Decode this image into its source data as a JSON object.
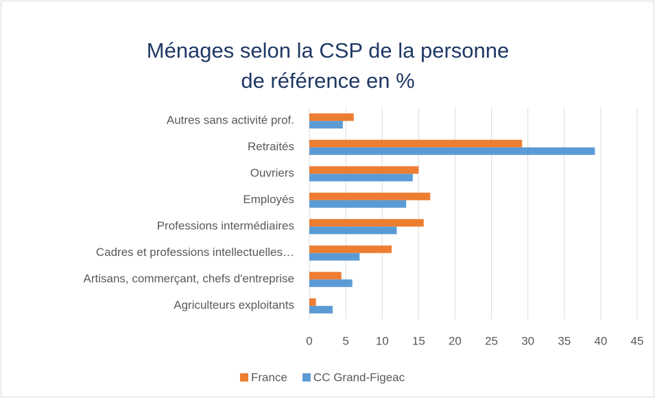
{
  "chart_data": {
    "type": "bar",
    "orientation": "horizontal",
    "title": [
      "Ménages selon la CSP de la personne",
      "de référence en %"
    ],
    "categories": [
      "Autres sans activité prof.",
      "Retraités",
      "Ouvriers",
      "Employés",
      "Professions intermédiaires",
      "Cadres et professions intellectuelles…",
      "Artisans, commerçant, chefs d'entreprise",
      "Agriculteurs exploitants"
    ],
    "series": [
      {
        "name": "France",
        "color": "#ed7d31",
        "values": [
          6.1,
          29.2,
          15.0,
          16.6,
          15.7,
          11.3,
          4.4,
          0.9
        ]
      },
      {
        "name": "CC Grand-Figeac",
        "color": "#5b9bd5",
        "values": [
          4.6,
          39.2,
          14.2,
          13.3,
          12.0,
          6.9,
          5.9,
          3.2
        ]
      }
    ],
    "xlim": [
      0,
      45
    ],
    "xticks": [
      0,
      5,
      10,
      15,
      20,
      25,
      30,
      35,
      40,
      45
    ],
    "grid": true,
    "legend": "bottom"
  }
}
